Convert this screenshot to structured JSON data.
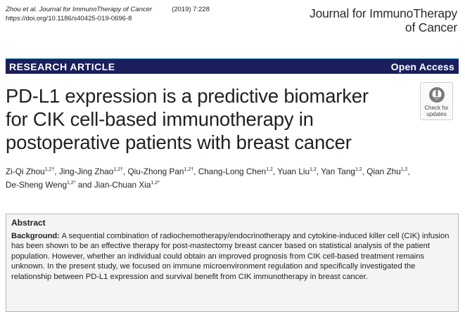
{
  "header": {
    "authors_short": "Zhou et al.",
    "journal_ref": "Journal for ImmunoTherapy of Cancer",
    "year_vol": "(2019) 7:228",
    "doi": "https://doi.org/10.1186/s40425-019-0696-8",
    "journal_name_line1": "Journal for ImmunoTherapy",
    "journal_name_line2": "of Cancer"
  },
  "banner": {
    "section": "RESEARCH ARTICLE",
    "access": "Open Access"
  },
  "title": {
    "line1": "PD-L1 expression is a predictive biomarker",
    "line2": "for CIK cell-based immunotherapy in",
    "line3": "postoperative patients with breast cancer"
  },
  "check_badge": {
    "line1": "Check for",
    "line2": "updates"
  },
  "authors": [
    {
      "name": "Zi-Qi Zhou",
      "sup": "1,2†"
    },
    {
      "name": "Jing-Jing Zhao",
      "sup": "1,2†"
    },
    {
      "name": "Qiu-Zhong Pan",
      "sup": "1,2†"
    },
    {
      "name": "Chang-Long Chen",
      "sup": "1,2"
    },
    {
      "name": "Yuan Liu",
      "sup": "1,2"
    },
    {
      "name": "Yan Tang",
      "sup": "1,2"
    },
    {
      "name": "Qian Zhu",
      "sup": "1,2"
    },
    {
      "name": "De-Sheng Weng",
      "sup": "1,2*"
    },
    {
      "name": "Jian-Chuan Xia",
      "sup": "1,2*"
    }
  ],
  "authors_separators": {
    "comma": ", ",
    "and": " and "
  },
  "abstract": {
    "heading": "Abstract",
    "background_label": "Background:",
    "background_text": " A sequential combination of radiochemotherapy/endocrinotherapy and cytokine-induced killer cell (CIK) infusion has been shown to be an effective therapy for post-mastectomy breast cancer based on statistical analysis of the patient population. However, whether an individual could obtain an improved prognosis from CIK cell-based treatment remains unknown. In the present study, we focused on immune microenvironment regulation and specifically investigated the relationship between PD-L1 expression and survival benefit from CIK immunotherapy in breast cancer."
  }
}
